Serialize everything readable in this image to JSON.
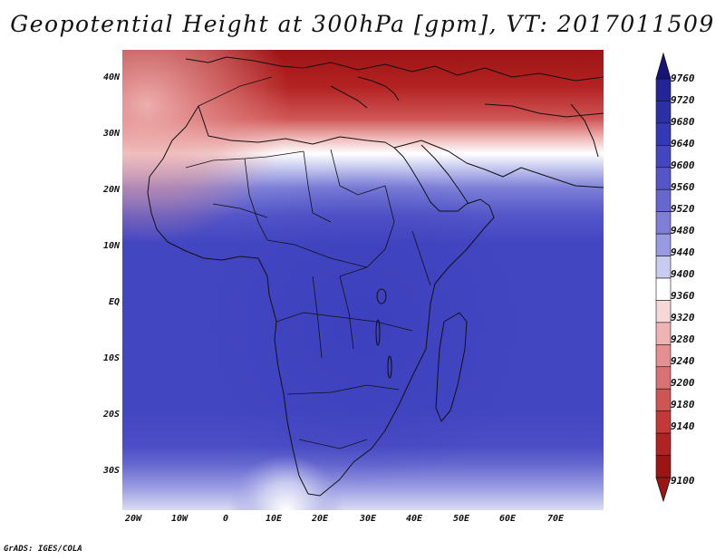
{
  "title": "Geopotential Height at 300hPa [gpm], VT: 2017011509",
  "credit": "GrADS: IGES/COLA",
  "lat_ticks": [
    {
      "label": "40N",
      "value": 40
    },
    {
      "label": "30N",
      "value": 30
    },
    {
      "label": "20N",
      "value": 20
    },
    {
      "label": "10N",
      "value": 10
    },
    {
      "label": "EQ",
      "value": 0
    },
    {
      "label": "10S",
      "value": -10
    },
    {
      "label": "20S",
      "value": -20
    },
    {
      "label": "30S",
      "value": -30
    }
  ],
  "lon_ticks": [
    {
      "label": "20W",
      "value": -20
    },
    {
      "label": "10W",
      "value": -10
    },
    {
      "label": "0",
      "value": 0
    },
    {
      "label": "10E",
      "value": 10
    },
    {
      "label": "20E",
      "value": 20
    },
    {
      "label": "30E",
      "value": 30
    },
    {
      "label": "40E",
      "value": 40
    },
    {
      "label": "50E",
      "value": 50
    },
    {
      "label": "60E",
      "value": 60
    },
    {
      "label": "70E",
      "value": 70
    }
  ],
  "extent": {
    "lon_min": -22,
    "lon_max": 80,
    "lat_min": -37,
    "lat_max": 45
  },
  "colorbar": {
    "units": "gpm",
    "labels": [
      "9760",
      "9720",
      "9680",
      "9640",
      "9600",
      "9560",
      "9520",
      "9480",
      "9440",
      "9400",
      "9360",
      "9320",
      "9280",
      "9240",
      "9200",
      "9180",
      "9140",
      "9100"
    ],
    "colors": [
      "#232596",
      "#2b2fa6",
      "#3538b6",
      "#4346c1",
      "#5355c8",
      "#6668cf",
      "#7d7fd8",
      "#999be2",
      "#c9cbef",
      "#ffffff",
      "#f6d8d8",
      "#efb3b3",
      "#e49090",
      "#d97373",
      "#cf5555",
      "#c43838",
      "#b32222",
      "#9c1414"
    ]
  }
}
